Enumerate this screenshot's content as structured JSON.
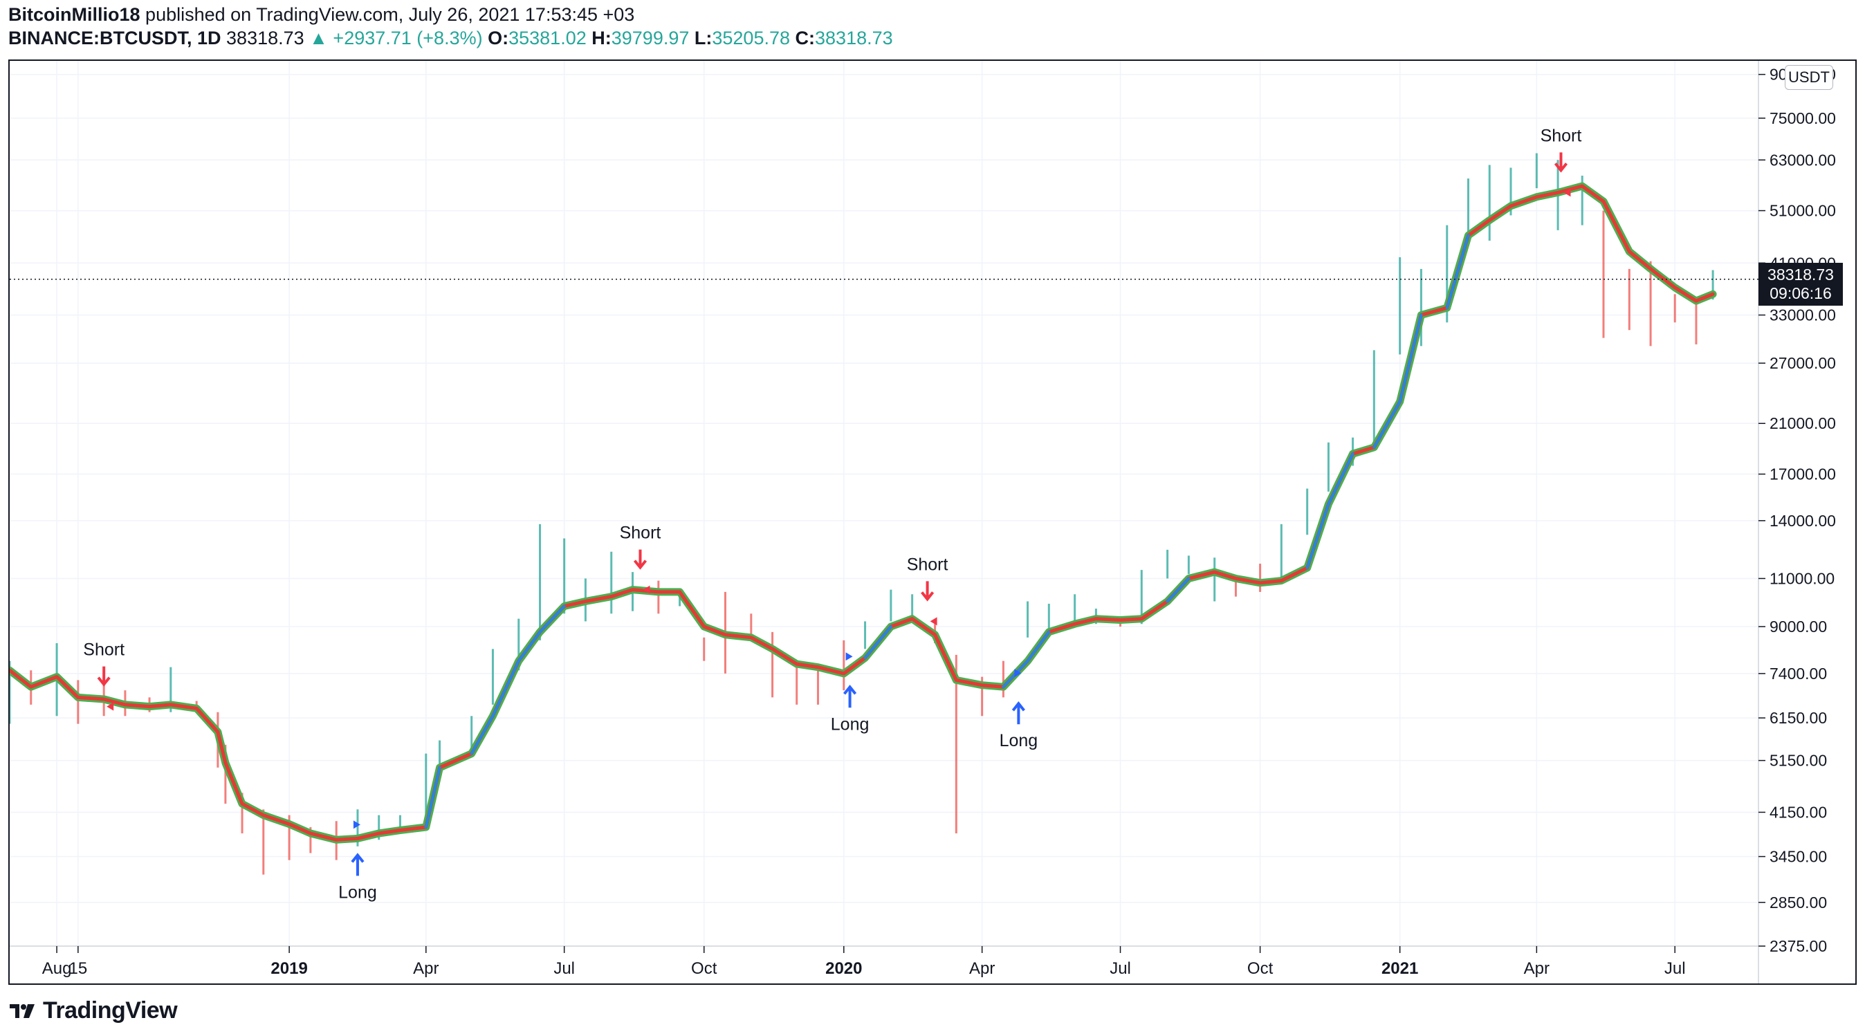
{
  "header": {
    "author": "BitcoinMillio18",
    "published": "published on TradingView.com, July 26, 2021 17:53:45 +03",
    "symbol": "BINANCE:BTCUSDT, 1D",
    "last": "38318.73",
    "arrow": "▲",
    "change": "+2937.71 (+8.3%)",
    "o_label": "O:",
    "o_value": "35381.02",
    "h_label": "H:",
    "h_value": "39799.97",
    "l_label": "L:",
    "l_value": "35205.78",
    "c_label": "C:",
    "c_value": "38318.73"
  },
  "currency_badge": "USDT",
  "last_price_label": "38318.73",
  "countdown_label": "09:06:16",
  "brand": "TradingView",
  "colors": {
    "up": "#26a69a",
    "down": "#ef5350",
    "line_green": "#4caf50",
    "line_red": "#e53935",
    "line_blue": "#1e88e5",
    "signal_red": "#f23645",
    "signal_blue": "#2962ff",
    "fill_green": "#e0f5ea",
    "fill_red": "#fde2e4"
  },
  "chart_data": {
    "type": "line",
    "y_scale": "log",
    "ylim": [
      2375,
      92000
    ],
    "price_ticks": [
      {
        "v": 90000,
        "label": "90000.00"
      },
      {
        "v": 75000,
        "label": "75000.00"
      },
      {
        "v": 63000,
        "label": "63000.00"
      },
      {
        "v": 51000,
        "label": "51000.00"
      },
      {
        "v": 41000,
        "label": "41000.00"
      },
      {
        "v": 33000,
        "label": "33000.00"
      },
      {
        "v": 27000,
        "label": "27000.00"
      },
      {
        "v": 21000,
        "label": "21000.00"
      },
      {
        "v": 17000,
        "label": "17000.00"
      },
      {
        "v": 14000,
        "label": "14000.00"
      },
      {
        "v": 11000,
        "label": "11000.00"
      },
      {
        "v": 9000,
        "label": "9000.00"
      },
      {
        "v": 7400,
        "label": "7400.00"
      },
      {
        "v": 6150,
        "label": "6150.00"
      },
      {
        "v": 5150,
        "label": "5150.00"
      },
      {
        "v": 4150,
        "label": "4150.00"
      },
      {
        "v": 3450,
        "label": "3450.00"
      },
      {
        "v": 2850,
        "label": "2850.00"
      },
      {
        "v": 2375,
        "label": "2375.00"
      }
    ],
    "xlim": [
      "2018-07-01",
      "2021-08-25"
    ],
    "time_ticks": [
      {
        "t": "2018-08-01",
        "label": "Aug",
        "bold": false
      },
      {
        "t": "2018-08-15",
        "label": "15",
        "bold": false
      },
      {
        "t": "2019-01-01",
        "label": "2019",
        "bold": true
      },
      {
        "t": "2019-04-01",
        "label": "Apr",
        "bold": false
      },
      {
        "t": "2019-07-01",
        "label": "Jul",
        "bold": false
      },
      {
        "t": "2019-10-01",
        "label": "Oct",
        "bold": false
      },
      {
        "t": "2020-01-01",
        "label": "2020",
        "bold": true
      },
      {
        "t": "2020-04-01",
        "label": "Apr",
        "bold": false
      },
      {
        "t": "2020-07-01",
        "label": "Jul",
        "bold": false
      },
      {
        "t": "2020-10-01",
        "label": "Oct",
        "bold": false
      },
      {
        "t": "2021-01-01",
        "label": "2021",
        "bold": true
      },
      {
        "t": "2021-04-01",
        "label": "Apr",
        "bold": false
      },
      {
        "t": "2021-07-01",
        "label": "Jul",
        "bold": false
      }
    ],
    "last_price": 38318.73,
    "series": [
      {
        "name": "",
        "x": [
          "2018-07-01",
          "2018-07-15",
          "2018-08-01",
          "2018-08-15",
          "2018-09-01",
          "2018-09-15",
          "2018-10-01",
          "2018-10-15",
          "2018-11-01",
          "2018-11-15",
          "2018-11-20",
          "2018-12-01",
          "2018-12-15",
          "2019-01-01",
          "2019-01-15",
          "2019-02-01",
          "2019-02-15",
          "2019-03-01",
          "2019-03-15",
          "2019-04-01",
          "2019-04-10",
          "2019-05-01",
          "2019-05-15",
          "2019-06-01",
          "2019-06-15",
          "2019-07-01",
          "2019-07-15",
          "2019-08-01",
          "2019-08-15",
          "2019-09-01",
          "2019-09-15",
          "2019-10-01",
          "2019-10-15",
          "2019-11-01",
          "2019-11-15",
          "2019-12-01",
          "2019-12-15",
          "2020-01-01",
          "2020-01-15",
          "2020-02-01",
          "2020-02-15",
          "2020-03-01",
          "2020-03-15",
          "2020-04-01",
          "2020-04-15",
          "2020-05-01",
          "2020-05-15",
          "2020-06-01",
          "2020-06-15",
          "2020-07-01",
          "2020-07-15",
          "2020-08-01",
          "2020-08-15",
          "2020-09-01",
          "2020-09-15",
          "2020-10-01",
          "2020-10-15",
          "2020-11-01",
          "2020-11-15",
          "2020-12-01",
          "2020-12-15",
          "2021-01-01",
          "2021-01-15",
          "2021-02-01",
          "2021-02-15",
          "2021-03-01",
          "2021-03-15",
          "2021-04-01",
          "2021-04-15",
          "2021-05-01",
          "2021-05-15",
          "2021-06-01",
          "2021-06-15",
          "2021-07-01",
          "2021-07-15",
          "2021-07-26"
        ],
        "y": [
          7500,
          7000,
          7300,
          6700,
          6650,
          6500,
          6450,
          6500,
          6400,
          5800,
          5100,
          4300,
          4100,
          3950,
          3800,
          3700,
          3720,
          3800,
          3850,
          3900,
          5000,
          5300,
          6200,
          7800,
          8800,
          9800,
          10000,
          10200,
          10500,
          10400,
          10400,
          9000,
          8700,
          8600,
          8200,
          7700,
          7600,
          7400,
          7900,
          9000,
          9300,
          8700,
          7200,
          7050,
          7000,
          7800,
          8800,
          9100,
          9300,
          9250,
          9300,
          10000,
          11000,
          11300,
          11000,
          10800,
          10900,
          11500,
          15000,
          18500,
          19000,
          23000,
          33000,
          34000,
          46000,
          49000,
          52000,
          54000,
          55000,
          56500,
          53000,
          43000,
          40000,
          37000,
          35000,
          36000
        ]
      }
    ],
    "candles": [
      {
        "x": "2018-07-01",
        "low": 6000,
        "high": 7800
      },
      {
        "x": "2018-07-15",
        "low": 6500,
        "high": 7500
      },
      {
        "x": "2018-08-01",
        "low": 6200,
        "high": 8400
      },
      {
        "x": "2018-08-15",
        "low": 6000,
        "high": 7200
      },
      {
        "x": "2018-09-01",
        "low": 6200,
        "high": 7400
      },
      {
        "x": "2018-09-15",
        "low": 6200,
        "high": 6900
      },
      {
        "x": "2018-10-01",
        "low": 6300,
        "high": 6700
      },
      {
        "x": "2018-10-15",
        "low": 6300,
        "high": 7600
      },
      {
        "x": "2018-11-01",
        "low": 6300,
        "high": 6600
      },
      {
        "x": "2018-11-15",
        "low": 5000,
        "high": 6300
      },
      {
        "x": "2018-11-20",
        "low": 4300,
        "high": 5500
      },
      {
        "x": "2018-12-01",
        "low": 3800,
        "high": 4500
      },
      {
        "x": "2018-12-15",
        "low": 3200,
        "high": 4200
      },
      {
        "x": "2019-01-01",
        "low": 3400,
        "high": 4100
      },
      {
        "x": "2019-01-15",
        "low": 3500,
        "high": 3900
      },
      {
        "x": "2019-02-01",
        "low": 3400,
        "high": 4000
      },
      {
        "x": "2019-02-15",
        "low": 3600,
        "high": 4200
      },
      {
        "x": "2019-03-01",
        "low": 3700,
        "high": 4100
      },
      {
        "x": "2019-03-15",
        "low": 3800,
        "high": 4100
      },
      {
        "x": "2019-04-01",
        "low": 4000,
        "high": 5300
      },
      {
        "x": "2019-04-10",
        "low": 5000,
        "high": 5600
      },
      {
        "x": "2019-05-01",
        "low": 5300,
        "high": 6200
      },
      {
        "x": "2019-05-15",
        "low": 6500,
        "high": 8200
      },
      {
        "x": "2019-06-01",
        "low": 7500,
        "high": 9300
      },
      {
        "x": "2019-06-15",
        "low": 8500,
        "high": 13800
      },
      {
        "x": "2019-07-01",
        "low": 9500,
        "high": 13000
      },
      {
        "x": "2019-07-15",
        "low": 9200,
        "high": 11000
      },
      {
        "x": "2019-08-01",
        "low": 9500,
        "high": 12300
      },
      {
        "x": "2019-08-15",
        "low": 9600,
        "high": 11300
      },
      {
        "x": "2019-09-01",
        "low": 9500,
        "high": 10900
      },
      {
        "x": "2019-09-15",
        "low": 9800,
        "high": 10400
      },
      {
        "x": "2019-10-01",
        "low": 7800,
        "high": 8600
      },
      {
        "x": "2019-10-15",
        "low": 7400,
        "high": 10400
      },
      {
        "x": "2019-11-01",
        "low": 8500,
        "high": 9500
      },
      {
        "x": "2019-11-15",
        "low": 6700,
        "high": 8800
      },
      {
        "x": "2019-12-01",
        "low": 6500,
        "high": 7700
      },
      {
        "x": "2019-12-15",
        "low": 6500,
        "high": 7500
      },
      {
        "x": "2020-01-01",
        "low": 6900,
        "high": 8500
      },
      {
        "x": "2020-01-15",
        "low": 8200,
        "high": 9200
      },
      {
        "x": "2020-02-01",
        "low": 9200,
        "high": 10500
      },
      {
        "x": "2020-02-15",
        "low": 9400,
        "high": 10300
      },
      {
        "x": "2020-03-01",
        "low": 8400,
        "high": 9100
      },
      {
        "x": "2020-03-15",
        "low": 3800,
        "high": 8000
      },
      {
        "x": "2020-04-01",
        "low": 6200,
        "high": 7300
      },
      {
        "x": "2020-04-15",
        "low": 6700,
        "high": 7800
      },
      {
        "x": "2020-05-01",
        "low": 8600,
        "high": 10000
      },
      {
        "x": "2020-05-15",
        "low": 8800,
        "high": 9900
      },
      {
        "x": "2020-06-01",
        "low": 9000,
        "high": 10300
      },
      {
        "x": "2020-06-15",
        "low": 9100,
        "high": 9700
      },
      {
        "x": "2020-07-01",
        "low": 9000,
        "high": 9400
      },
      {
        "x": "2020-07-15",
        "low": 9100,
        "high": 11400
      },
      {
        "x": "2020-08-01",
        "low": 11000,
        "high": 12400
      },
      {
        "x": "2020-08-15",
        "low": 11200,
        "high": 12100
      },
      {
        "x": "2020-09-01",
        "low": 10000,
        "high": 12000
      },
      {
        "x": "2020-09-15",
        "low": 10200,
        "high": 11100
      },
      {
        "x": "2020-10-01",
        "low": 10400,
        "high": 11700
      },
      {
        "x": "2020-10-15",
        "low": 11000,
        "high": 13800
      },
      {
        "x": "2020-11-01",
        "low": 13200,
        "high": 16000
      },
      {
        "x": "2020-11-15",
        "low": 15800,
        "high": 19400
      },
      {
        "x": "2020-12-01",
        "low": 17600,
        "high": 19800
      },
      {
        "x": "2020-12-15",
        "low": 19000,
        "high": 28500
      },
      {
        "x": "2021-01-01",
        "low": 28000,
        "high": 42000
      },
      {
        "x": "2021-01-15",
        "low": 29000,
        "high": 40000
      },
      {
        "x": "2021-02-01",
        "low": 32000,
        "high": 48000
      },
      {
        "x": "2021-02-15",
        "low": 44000,
        "high": 58300
      },
      {
        "x": "2021-03-01",
        "low": 45000,
        "high": 61700
      },
      {
        "x": "2021-03-15",
        "low": 50000,
        "high": 61000
      },
      {
        "x": "2021-04-01",
        "low": 56000,
        "high": 64800
      },
      {
        "x": "2021-04-15",
        "low": 47000,
        "high": 63000
      },
      {
        "x": "2021-05-01",
        "low": 48000,
        "high": 59000
      },
      {
        "x": "2021-05-15",
        "low": 30000,
        "high": 51000
      },
      {
        "x": "2021-06-01",
        "low": 31000,
        "high": 40000
      },
      {
        "x": "2021-06-15",
        "low": 29000,
        "high": 41300
      },
      {
        "x": "2021-07-01",
        "low": 32000,
        "high": 36000
      },
      {
        "x": "2021-07-15",
        "low": 29200,
        "high": 35000
      },
      {
        "x": "2021-07-26",
        "low": 35200,
        "high": 39800
      }
    ],
    "signals": [
      {
        "type": "short",
        "label": "Short",
        "x": "2018-09-01",
        "y": 6450
      },
      {
        "type": "long",
        "label": "Long",
        "x": "2019-02-15",
        "y": 3720
      },
      {
        "type": "short",
        "label": "Short",
        "x": "2019-08-20",
        "y": 10500
      },
      {
        "type": "long",
        "label": "Long",
        "x": "2020-01-05",
        "y": 7500
      },
      {
        "type": "short",
        "label": "Short",
        "x": "2020-02-25",
        "y": 9200
      },
      {
        "type": "long",
        "label": "Long",
        "x": "2020-04-25",
        "y": 7000
      },
      {
        "type": "short",
        "label": "Short",
        "x": "2021-04-17",
        "y": 55000
      }
    ]
  }
}
